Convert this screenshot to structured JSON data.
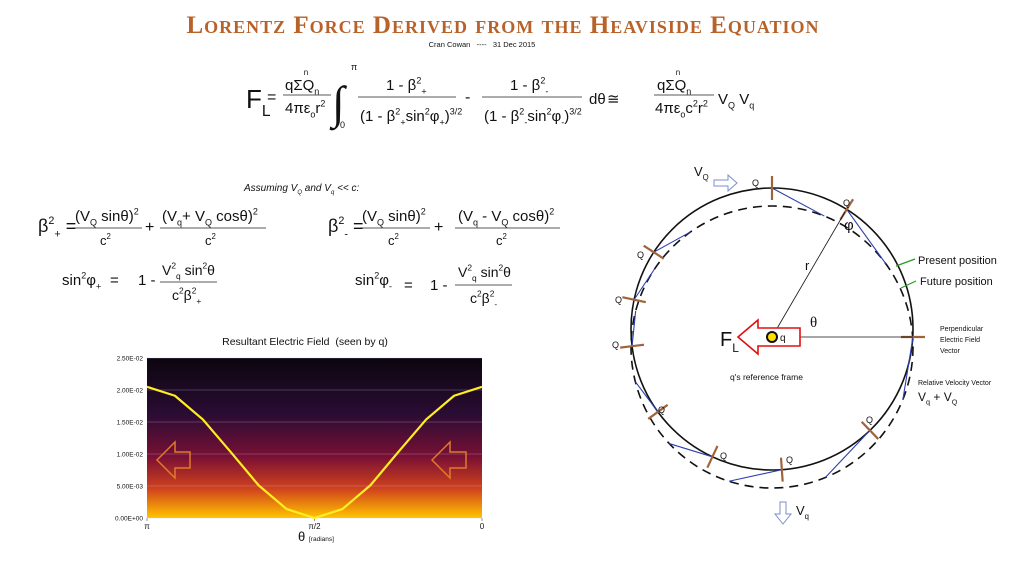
{
  "header": {
    "title": "Lorentz Force Derived from the Heaviside Equation",
    "subtitle": "Cran Cowan   ----   31 Dec 2015"
  },
  "main_equation": {
    "lhs": [
      "F",
      {
        "sub": "L"
      }
    ],
    "equals": "=",
    "numerator": [
      "qΣQ",
      {
        "sub": "n"
      }
    ],
    "sum_index": "n",
    "denominator": [
      "4πε",
      {
        "sub": "o"
      },
      "r",
      {
        "sup": "2"
      }
    ],
    "integral": "∫",
    "upper_limit": "π",
    "lower_limit": "0",
    "term1_numerator": [
      "1 - β",
      {
        "sup": "2"
      },
      {
        "sub": "+"
      }
    ],
    "term1_denominator": [
      "(1 - β",
      {
        "sup": "2"
      },
      {
        "sub": "+"
      },
      "sin",
      {
        "sup": "2"
      },
      "φ",
      {
        "sub": "+"
      },
      ")",
      {
        "sup": "3/2"
      }
    ],
    "minus": "-",
    "term2_numerator": [
      "1 - β",
      {
        "sup": "2"
      },
      {
        "sub": "-"
      }
    ],
    "term2_denominator": [
      "(1 - β",
      {
        "sup": "2"
      },
      {
        "sub": "-"
      },
      "sin",
      {
        "sup": "2"
      },
      "φ",
      {
        "sub": "-"
      },
      ")",
      {
        "sup": "3/2"
      }
    ],
    "differential": "dθ",
    "approx": "≅",
    "rhs_numerator": [
      "qΣQ",
      {
        "sub": "n"
      }
    ],
    "rhs_sum_index": "n",
    "rhs_denominator": [
      "4πε",
      {
        "sub": "o"
      },
      "c",
      {
        "sup": "2"
      },
      "r",
      {
        "sup": "2"
      }
    ],
    "rhs_velocities": [
      "V",
      {
        "sub": "Q"
      },
      " V",
      {
        "sub": "q"
      }
    ]
  },
  "assumption": [
    "Assuming V",
    {
      "sub": "Q"
    },
    " and V",
    {
      "sub": "q"
    },
    " << c:"
  ],
  "beta_plus": {
    "lhs": [
      "β",
      {
        "sup": "2"
      },
      {
        "sub": "+"
      },
      " ="
    ],
    "num1": [
      "(V",
      {
        "sub": "Q"
      },
      " sinθ)",
      {
        "sup": "2"
      }
    ],
    "den1": [
      "c",
      {
        "sup": "2"
      }
    ],
    "plus": "+",
    "num2": [
      "(V",
      {
        "sub": "q"
      },
      "+ V",
      {
        "sub": "Q"
      },
      " cosθ)",
      {
        "sup": "2"
      }
    ],
    "den2": [
      "c",
      {
        "sup": "2"
      }
    ]
  },
  "beta_minus": {
    "lhs": [
      "β",
      {
        "sup": "2"
      },
      {
        "sub": "-"
      },
      " ="
    ],
    "num1": [
      "(V",
      {
        "sub": "Q"
      },
      " sinθ)",
      {
        "sup": "2"
      }
    ],
    "den1": [
      "c",
      {
        "sup": "2"
      }
    ],
    "plus": "+",
    "num2": [
      "(V",
      {
        "sub": "q"
      },
      " - V",
      {
        "sub": "Q"
      },
      " cosθ)",
      {
        "sup": "2"
      }
    ],
    "den2": [
      "c",
      {
        "sup": "2"
      }
    ]
  },
  "sin_plus": {
    "lhs": [
      "sin",
      {
        "sup": "2"
      },
      "φ",
      {
        "sub": "+"
      }
    ],
    "equals": "=",
    "one_minus": "1 -",
    "num": [
      "V",
      {
        "sup": "2"
      },
      {
        "sub": "q"
      },
      " sin",
      {
        "sup": "2"
      },
      "θ"
    ],
    "den": [
      "c",
      {
        "sup": "2"
      },
      "β",
      {
        "sup": "2"
      },
      {
        "sub": "+"
      }
    ]
  },
  "sin_minus": {
    "lhs": [
      "sin",
      {
        "sup": "2"
      },
      "φ",
      {
        "sub": "-"
      }
    ],
    "equals": "=",
    "one_minus": "1 -",
    "num": [
      "V",
      {
        "sup": "2"
      },
      {
        "sub": "q"
      },
      " sin",
      {
        "sup": "2"
      },
      "θ"
    ],
    "den": [
      "c",
      {
        "sup": "2"
      },
      "β",
      {
        "sup": "2"
      },
      {
        "sub": "-"
      }
    ]
  },
  "chart_data": {
    "type": "line",
    "title": "Resultant Electric Field  (seen by q)",
    "x_label": "θ",
    "x_label_unit": "[radians]",
    "x": [
      3.1416,
      2.8798,
      2.618,
      2.3562,
      2.0944,
      1.8326,
      1.5708,
      1.309,
      1.0472,
      0.7854,
      0.5236,
      0.2618,
      0
    ],
    "series": [
      {
        "color": "#ffee22",
        "values": [
          0.0205,
          0.0191,
          0.0154,
          0.0103,
          0.0051,
          0.0014,
          0,
          0.0014,
          0.0051,
          0.0103,
          0.0154,
          0.0191,
          0.0205
        ]
      }
    ],
    "xlim": [
      3.1416,
      0
    ],
    "xticks": [
      {
        "value": 3.1416,
        "label": "π"
      },
      {
        "value": 1.5708,
        "label": "π/2"
      },
      0
    ],
    "ylim": [
      0,
      0.025
    ],
    "yticks": [
      {
        "value": 0,
        "label": "0.00E+00"
      },
      {
        "value": 0.005,
        "label": "5.00E-03"
      },
      {
        "value": 0.01,
        "label": "1.00E-02"
      },
      {
        "value": 0.015,
        "label": "1.50E-02"
      },
      {
        "value": 0.02,
        "label": "2.00E-02"
      },
      {
        "value": 0.025,
        "label": "2.50E-02"
      }
    ],
    "grid": true
  },
  "diagram": {
    "force": [
      "F",
      {
        "sub": "L"
      }
    ],
    "angle": "θ",
    "radius": "r",
    "phi": "φ",
    "charge": "q",
    "charge_labels": [
      "Q",
      "Q",
      "Q",
      "Q",
      "Q",
      "Q",
      "Q",
      "Q",
      "Q"
    ],
    "source_velocity": [
      "V",
      {
        "sub": "Q"
      }
    ],
    "observer_velocity": [
      "V",
      {
        "sub": "q"
      }
    ],
    "present_position": "Present position",
    "future_position": "Future position",
    "field_vector": [
      "Perpendicular",
      "Electric Field",
      "Vector"
    ],
    "velocity_vector": "Relative Velocity Vector",
    "relative_velocity": [
      "V",
      {
        "sub": "q"
      },
      " + V",
      {
        "sub": "Q"
      }
    ],
    "frame": "q's reference frame"
  }
}
